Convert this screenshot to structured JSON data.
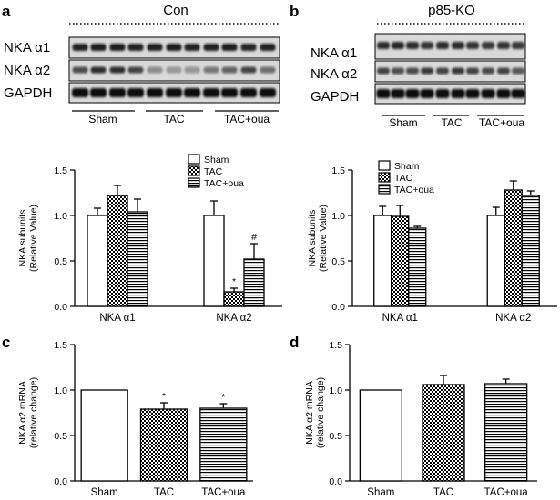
{
  "panels": {
    "a": {
      "letter": "a",
      "condition": "Con",
      "bands": [
        "NKA α1",
        "NKA α2",
        "GAPDH"
      ],
      "groups": [
        "Sham",
        "TAC",
        "TAC+oua"
      ]
    },
    "b": {
      "letter": "b",
      "condition": "p85-KO",
      "bands": [
        "NKA α1",
        "NKA α2",
        "GAPDH"
      ],
      "groups": [
        "Sham",
        "TAC",
        "TAC+oua"
      ]
    },
    "c": {
      "letter": "c"
    },
    "d": {
      "letter": "d"
    }
  },
  "colors": {
    "ink": "#000000",
    "bar_fill": "#ffffff",
    "blot_dark": "#111111",
    "blot_bg": "#d9d9d9"
  },
  "chart_data": [
    {
      "id": "a_chart",
      "type": "bar",
      "ylabel": "NKA subunits (Relative Value)",
      "ylabel_lines": [
        "NKA subunits",
        "(Relative Value)"
      ],
      "categories": [
        "NKA α1",
        "NKA α2"
      ],
      "ylim": [
        0,
        1.5
      ],
      "yticks": [
        "0.0",
        "0.5",
        "1.0",
        "1.5"
      ],
      "legend": [
        "Sham",
        "TAC",
        "TAC+oua"
      ],
      "legend_position": "top-right",
      "series": [
        {
          "name": "Sham",
          "pattern": "open",
          "values": [
            1.0,
            1.0
          ],
          "errors": [
            0.08,
            0.16
          ],
          "marks": [
            "",
            ""
          ]
        },
        {
          "name": "TAC",
          "pattern": "check",
          "values": [
            1.22,
            0.16
          ],
          "errors": [
            0.11,
            0.04
          ],
          "marks": [
            "",
            "*"
          ]
        },
        {
          "name": "TAC+oua",
          "pattern": "hstripe",
          "values": [
            1.04,
            0.52
          ],
          "errors": [
            0.14,
            0.17
          ],
          "marks": [
            "",
            "#"
          ]
        }
      ]
    },
    {
      "id": "b_chart",
      "type": "bar",
      "ylabel": "NKA subunits (Relative Value)",
      "ylabel_lines": [
        "NKA subunits",
        "(Relative Value)"
      ],
      "categories": [
        "NKA α1",
        "NKA α2"
      ],
      "ylim": [
        0,
        1.5
      ],
      "yticks": [
        "0.0",
        "0.5",
        "1.0",
        "1.5"
      ],
      "legend": [
        "Sham",
        "TAC",
        "TAC+oua"
      ],
      "legend_position": "top-left",
      "series": [
        {
          "name": "Sham",
          "pattern": "open",
          "values": [
            1.0,
            1.0
          ],
          "errors": [
            0.1,
            0.09
          ],
          "marks": [
            "",
            ""
          ]
        },
        {
          "name": "TAC",
          "pattern": "check",
          "values": [
            0.99,
            1.28
          ],
          "errors": [
            0.12,
            0.1
          ],
          "marks": [
            "",
            ""
          ]
        },
        {
          "name": "TAC+oua",
          "pattern": "hstripe",
          "values": [
            0.86,
            1.22
          ],
          "errors": [
            0.02,
            0.05
          ],
          "marks": [
            "",
            ""
          ]
        }
      ]
    },
    {
      "id": "c_chart",
      "type": "bar",
      "ylabel": "NKA α2 mRNA (relative change)",
      "ylabel_lines": [
        "NKA α2 mRNA",
        "(relative change)"
      ],
      "categories": [
        "Sham",
        "TAC",
        "TAC+oua"
      ],
      "ylim": [
        0,
        1.5
      ],
      "yticks": [
        "0.0",
        "0.5",
        "1.0",
        "1.5"
      ],
      "patterns": [
        "open",
        "check",
        "hstripe"
      ],
      "values": [
        1.0,
        0.79,
        0.8
      ],
      "errors": [
        0.0,
        0.07,
        0.05
      ],
      "marks": [
        "",
        "*",
        "*"
      ]
    },
    {
      "id": "d_chart",
      "type": "bar",
      "ylabel": "NKA α2 mRNA (relative change)",
      "ylabel_lines": [
        "NKA α2 mRNA",
        "(relative change)"
      ],
      "categories": [
        "Sham",
        "TAC",
        "TAC+oua"
      ],
      "ylim": [
        0,
        1.5
      ],
      "yticks": [
        "0.0",
        "0.5",
        "1.0",
        "1.5"
      ],
      "patterns": [
        "open",
        "check",
        "hstripe"
      ],
      "values": [
        1.0,
        1.06,
        1.07
      ],
      "errors": [
        0.0,
        0.1,
        0.05
      ],
      "marks": [
        "",
        "",
        ""
      ]
    }
  ]
}
